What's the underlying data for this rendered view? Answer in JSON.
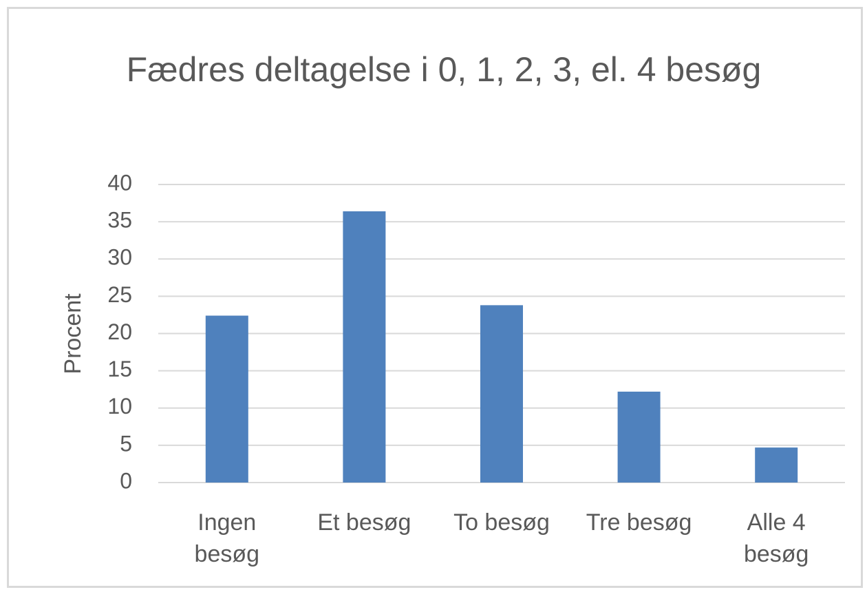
{
  "chart_data": {
    "type": "bar",
    "title": "Fædres deltagelse i 0, 1, 2, 3, el. 4 besøg",
    "y_label": "Procent",
    "categories": [
      "Ingen besøg",
      "Et besøg",
      "To besøg",
      "Tre besøg",
      "Alle 4 besøg"
    ],
    "values": [
      22.4,
      36.4,
      23.8,
      12.2,
      4.7
    ],
    "color": "#4f81bd",
    "ylim": [
      0,
      40
    ],
    "yticks": [
      0,
      5,
      10,
      15,
      20,
      25,
      30,
      35,
      40
    ],
    "grid": true
  }
}
